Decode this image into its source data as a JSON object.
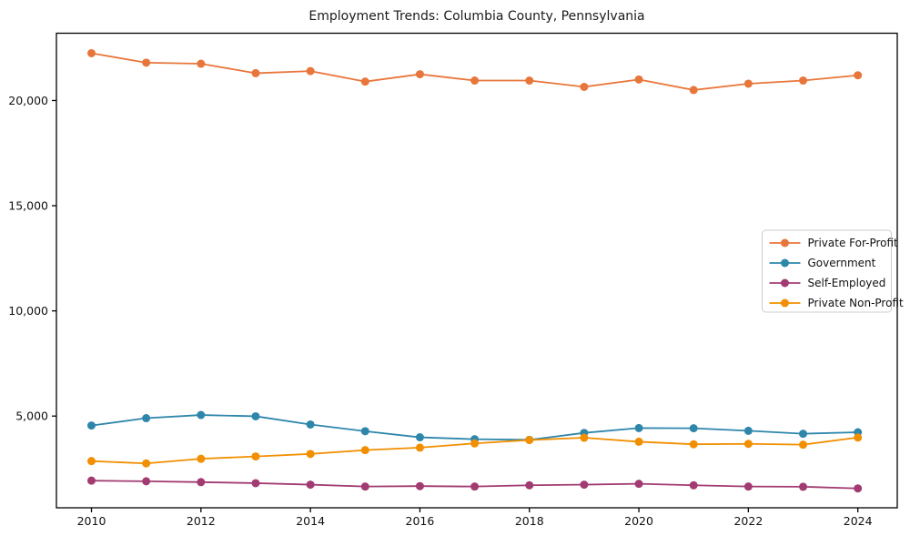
{
  "title": "Employment Trends: Columbia County, Pennsylvania",
  "chart_data": {
    "type": "line",
    "title": "Employment Trends: Columbia County, Pennsylvania",
    "x": [
      2010,
      2011,
      2012,
      2013,
      2014,
      2015,
      2016,
      2017,
      2018,
      2019,
      2020,
      2021,
      2022,
      2023,
      2024
    ],
    "series": [
      {
        "name": "Private For-Profit",
        "color": "#E8763B",
        "values": [
          22250,
          21800,
          21750,
          21300,
          21400,
          20900,
          21250,
          20950,
          20950,
          20650,
          21000,
          20500,
          20800,
          20950,
          21200
        ]
      },
      {
        "name": "Government",
        "color": "#2E86AB",
        "values": [
          4550,
          4900,
          5050,
          4990,
          4600,
          4280,
          3990,
          3900,
          3870,
          4200,
          4430,
          4420,
          4300,
          4160,
          4230
        ]
      },
      {
        "name": "Self-Employed",
        "color": "#A23B72",
        "values": [
          1930,
          1900,
          1860,
          1810,
          1740,
          1650,
          1670,
          1650,
          1710,
          1740,
          1780,
          1710,
          1650,
          1640,
          1560
        ]
      },
      {
        "name": "Private Non-Profit",
        "color": "#F18F01",
        "values": [
          2860,
          2750,
          2970,
          3080,
          3200,
          3380,
          3500,
          3700,
          3860,
          3970,
          3780,
          3660,
          3680,
          3640,
          3980
        ]
      }
    ],
    "xticks": [
      2010,
      2012,
      2014,
      2016,
      2018,
      2020,
      2022,
      2024
    ],
    "xtick_labels": [
      "2010",
      "2012",
      "2014",
      "2016",
      "2018",
      "2020",
      "2022",
      "2024"
    ],
    "yticks": [
      5000,
      10000,
      15000,
      20000
    ],
    "ytick_labels": [
      "5,000",
      "10,000",
      "15,000",
      "20,000"
    ],
    "xlim": [
      2009.36,
      2024.72
    ],
    "ylim": [
      640,
      23200
    ],
    "grid": false,
    "legend_position": "center-right",
    "axis_color": "#000000",
    "background": "#ffffff"
  }
}
